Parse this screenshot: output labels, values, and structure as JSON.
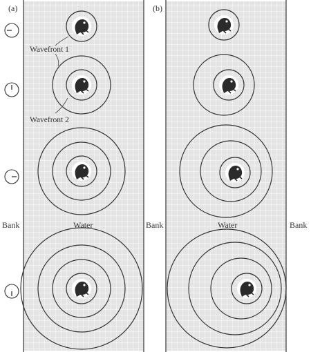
{
  "panels": [
    {
      "label": "(a)",
      "left_bank_label": "Bank",
      "water_label": "Water",
      "right_bank_label": "Bank",
      "annotations": [
        "Wavefront 1",
        "Wavefront 2"
      ],
      "clocks": [
        {
          "hand": "left-icon"
        },
        {
          "hand": "up-icon"
        },
        {
          "hand": "right-icon"
        },
        {
          "hand": "down-icon"
        }
      ]
    },
    {
      "label": "(b)",
      "water_label": "Water",
      "right_bank_label": "Bank"
    }
  ],
  "icons": {
    "frog": "frog-icon",
    "clock": "clock-icon"
  },
  "colors": {
    "water_fill": "#e4e4e4",
    "grid_line": "#f8f8f8",
    "wave_line": "#333333",
    "bank_line": "#444444"
  }
}
